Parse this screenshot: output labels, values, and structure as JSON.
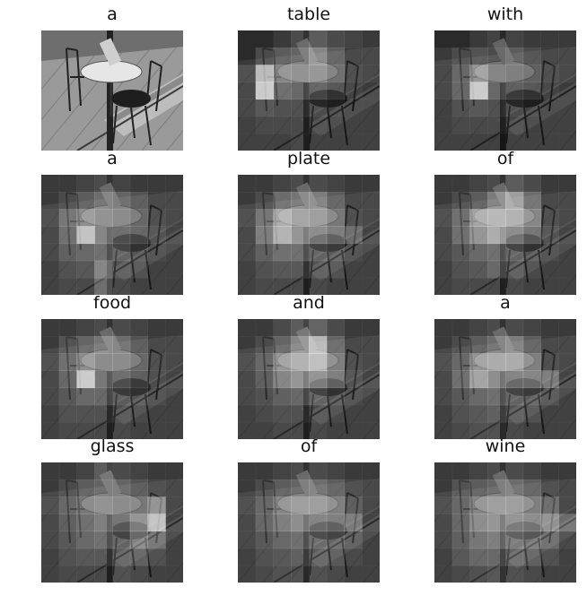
{
  "caption_words": [
    "a",
    "table",
    "with",
    "a",
    "plate",
    "of",
    "food",
    "and",
    "a",
    "glass",
    "of",
    "wine"
  ],
  "panels": [
    {
      "word": "a",
      "original": true,
      "heat": []
    },
    {
      "word": "table",
      "heat": [
        [
          0,
          0,
          0.1,
          0.2,
          0.3,
          0.2,
          0.15,
          0.1
        ],
        [
          0,
          0.2,
          0.3,
          0.35,
          0.55,
          0.3,
          0.1,
          0.1
        ],
        [
          0.15,
          0.85,
          0.5,
          0.45,
          0.5,
          0.35,
          0.15,
          0.1
        ],
        [
          0.1,
          0.95,
          0.35,
          0.3,
          0.3,
          0.2,
          0.1,
          0.05
        ],
        [
          0.1,
          0.2,
          0.15,
          0.15,
          0.15,
          0.1,
          0.05,
          0.05
        ],
        [
          0.05,
          0.1,
          0.1,
          0.1,
          0.1,
          0.05,
          0.05,
          0.05
        ],
        [
          0.05,
          0.05,
          0.05,
          0.1,
          0.05,
          0.05,
          0.05,
          0.05
        ]
      ]
    },
    {
      "word": "with",
      "heat": [
        [
          0,
          0,
          0.1,
          0.15,
          0.15,
          0.1,
          0.1,
          0.1
        ],
        [
          0.1,
          0.2,
          0.25,
          0.2,
          0.3,
          0.2,
          0.1,
          0.1
        ],
        [
          0.1,
          0.3,
          0.6,
          0.35,
          0.3,
          0.25,
          0.15,
          0.1
        ],
        [
          0.1,
          0.3,
          0.95,
          0.3,
          0.25,
          0.2,
          0.1,
          0.05
        ],
        [
          0.05,
          0.15,
          0.2,
          0.15,
          0.15,
          0.1,
          0.05,
          0.05
        ],
        [
          0.05,
          0.1,
          0.1,
          0.1,
          0.1,
          0.05,
          0.05,
          0.05
        ],
        [
          0.05,
          0.05,
          0.05,
          0.05,
          0.05,
          0.05,
          0.05,
          0.05
        ]
      ]
    },
    {
      "word": "a",
      "heat": [
        [
          0.1,
          0.1,
          0.15,
          0.2,
          0.15,
          0.1,
          0.1,
          0.1
        ],
        [
          0.1,
          0.2,
          0.3,
          0.4,
          0.35,
          0.25,
          0.1,
          0.1
        ],
        [
          0.15,
          0.4,
          0.55,
          0.45,
          0.4,
          0.3,
          0.15,
          0.1
        ],
        [
          0.1,
          0.35,
          0.9,
          0.5,
          0.35,
          0.3,
          0.2,
          0.1
        ],
        [
          0.1,
          0.25,
          0.3,
          0.35,
          0.3,
          0.2,
          0.1,
          0.05
        ],
        [
          0.05,
          0.15,
          0.2,
          0.5,
          0.2,
          0.15,
          0.05,
          0.05
        ],
        [
          0.05,
          0.1,
          0.1,
          0.35,
          0.1,
          0.05,
          0.05,
          0.05
        ]
      ]
    },
    {
      "word": "plate",
      "heat": [
        [
          0.1,
          0.1,
          0.15,
          0.2,
          0.2,
          0.15,
          0.1,
          0.1
        ],
        [
          0.1,
          0.2,
          0.4,
          0.45,
          0.5,
          0.3,
          0.1,
          0.1
        ],
        [
          0.15,
          0.4,
          0.75,
          0.6,
          0.55,
          0.4,
          0.15,
          0.1
        ],
        [
          0.1,
          0.45,
          0.8,
          0.6,
          0.55,
          0.45,
          0.35,
          0.1
        ],
        [
          0.1,
          0.25,
          0.35,
          0.35,
          0.3,
          0.25,
          0.1,
          0.05
        ],
        [
          0.05,
          0.15,
          0.2,
          0.2,
          0.2,
          0.15,
          0.05,
          0.05
        ],
        [
          0.05,
          0.1,
          0.1,
          0.1,
          0.1,
          0.05,
          0.05,
          0.05
        ]
      ]
    },
    {
      "word": "of",
      "heat": [
        [
          0.1,
          0.1,
          0.15,
          0.2,
          0.3,
          0.2,
          0.1,
          0.1
        ],
        [
          0.1,
          0.2,
          0.3,
          0.5,
          0.7,
          0.4,
          0.1,
          0.1
        ],
        [
          0.15,
          0.35,
          0.7,
          0.75,
          0.7,
          0.5,
          0.15,
          0.1
        ],
        [
          0.1,
          0.35,
          0.6,
          0.75,
          0.55,
          0.4,
          0.2,
          0.1
        ],
        [
          0.1,
          0.2,
          0.3,
          0.35,
          0.3,
          0.2,
          0.1,
          0.05
        ],
        [
          0.05,
          0.15,
          0.2,
          0.3,
          0.2,
          0.1,
          0.05,
          0.05
        ],
        [
          0.05,
          0.1,
          0.1,
          0.1,
          0.1,
          0.05,
          0.05,
          0.05
        ]
      ]
    },
    {
      "word": "food",
      "heat": [
        [
          0.1,
          0.1,
          0.15,
          0.2,
          0.2,
          0.15,
          0.1,
          0.1
        ],
        [
          0.1,
          0.25,
          0.35,
          0.45,
          0.4,
          0.25,
          0.1,
          0.1
        ],
        [
          0.15,
          0.35,
          0.55,
          0.4,
          0.4,
          0.3,
          0.15,
          0.1
        ],
        [
          0.1,
          0.3,
          0.95,
          0.4,
          0.35,
          0.25,
          0.15,
          0.1
        ],
        [
          0.1,
          0.2,
          0.3,
          0.3,
          0.25,
          0.2,
          0.1,
          0.05
        ],
        [
          0.05,
          0.15,
          0.15,
          0.15,
          0.15,
          0.1,
          0.05,
          0.05
        ],
        [
          0.05,
          0.1,
          0.1,
          0.1,
          0.1,
          0.05,
          0.05,
          0.05
        ]
      ]
    },
    {
      "word": "and",
      "heat": [
        [
          0.1,
          0.1,
          0.2,
          0.3,
          0.35,
          0.2,
          0.1,
          0.1
        ],
        [
          0.1,
          0.2,
          0.35,
          0.55,
          0.85,
          0.35,
          0.1,
          0.1
        ],
        [
          0.15,
          0.3,
          0.6,
          0.7,
          0.8,
          0.45,
          0.15,
          0.1
        ],
        [
          0.1,
          0.25,
          0.5,
          0.6,
          0.6,
          0.45,
          0.2,
          0.1
        ],
        [
          0.1,
          0.15,
          0.25,
          0.3,
          0.3,
          0.2,
          0.1,
          0.05
        ],
        [
          0.05,
          0.1,
          0.15,
          0.15,
          0.15,
          0.1,
          0.05,
          0.05
        ],
        [
          0.05,
          0.05,
          0.1,
          0.1,
          0.1,
          0.05,
          0.05,
          0.05
        ]
      ]
    },
    {
      "word": "a",
      "heat": [
        [
          0.1,
          0.1,
          0.15,
          0.2,
          0.2,
          0.15,
          0.1,
          0.1
        ],
        [
          0.1,
          0.2,
          0.3,
          0.4,
          0.5,
          0.3,
          0.1,
          0.1
        ],
        [
          0.15,
          0.3,
          0.6,
          0.65,
          0.65,
          0.45,
          0.15,
          0.1
        ],
        [
          0.1,
          0.35,
          0.7,
          0.55,
          0.5,
          0.5,
          0.45,
          0.1
        ],
        [
          0.1,
          0.2,
          0.3,
          0.35,
          0.3,
          0.25,
          0.15,
          0.05
        ],
        [
          0.05,
          0.15,
          0.2,
          0.25,
          0.2,
          0.15,
          0.05,
          0.05
        ],
        [
          0.05,
          0.1,
          0.15,
          0.15,
          0.1,
          0.05,
          0.05,
          0.05
        ]
      ]
    },
    {
      "word": "glass",
      "heat": [
        [
          0.1,
          0.1,
          0.15,
          0.3,
          0.2,
          0.15,
          0.1,
          0.1
        ],
        [
          0.1,
          0.2,
          0.3,
          0.35,
          0.35,
          0.25,
          0.15,
          0.1
        ],
        [
          0.15,
          0.3,
          0.4,
          0.45,
          0.4,
          0.4,
          0.6,
          0.1
        ],
        [
          0.1,
          0.25,
          0.35,
          0.45,
          0.4,
          0.6,
          0.9,
          0.1
        ],
        [
          0.1,
          0.2,
          0.3,
          0.35,
          0.3,
          0.5,
          0.35,
          0.05
        ],
        [
          0.05,
          0.15,
          0.2,
          0.2,
          0.25,
          0.25,
          0.15,
          0.05
        ],
        [
          0.05,
          0.1,
          0.1,
          0.1,
          0.15,
          0.1,
          0.05,
          0.05
        ]
      ]
    },
    {
      "word": "of",
      "heat": [
        [
          0.1,
          0.1,
          0.15,
          0.2,
          0.2,
          0.15,
          0.1,
          0.1
        ],
        [
          0.1,
          0.2,
          0.3,
          0.35,
          0.4,
          0.3,
          0.15,
          0.1
        ],
        [
          0.15,
          0.3,
          0.5,
          0.55,
          0.55,
          0.45,
          0.25,
          0.1
        ],
        [
          0.1,
          0.3,
          0.45,
          0.55,
          0.5,
          0.45,
          0.45,
          0.1
        ],
        [
          0.1,
          0.2,
          0.3,
          0.35,
          0.35,
          0.3,
          0.2,
          0.05
        ],
        [
          0.05,
          0.15,
          0.2,
          0.25,
          0.25,
          0.2,
          0.1,
          0.05
        ],
        [
          0.05,
          0.1,
          0.15,
          0.15,
          0.15,
          0.1,
          0.05,
          0.05
        ]
      ]
    },
    {
      "word": "wine",
      "heat": [
        [
          0.1,
          0.1,
          0.15,
          0.2,
          0.2,
          0.15,
          0.1,
          0.1
        ],
        [
          0.1,
          0.25,
          0.3,
          0.35,
          0.4,
          0.3,
          0.15,
          0.1
        ],
        [
          0.15,
          0.3,
          0.5,
          0.55,
          0.55,
          0.45,
          0.35,
          0.1
        ],
        [
          0.1,
          0.3,
          0.55,
          0.6,
          0.6,
          0.55,
          0.6,
          0.35
        ],
        [
          0.1,
          0.25,
          0.4,
          0.45,
          0.45,
          0.4,
          0.3,
          0.1
        ],
        [
          0.05,
          0.2,
          0.3,
          0.3,
          0.3,
          0.25,
          0.15,
          0.05
        ],
        [
          0.05,
          0.1,
          0.15,
          0.2,
          0.15,
          0.1,
          0.05,
          0.05
        ]
      ]
    }
  ]
}
